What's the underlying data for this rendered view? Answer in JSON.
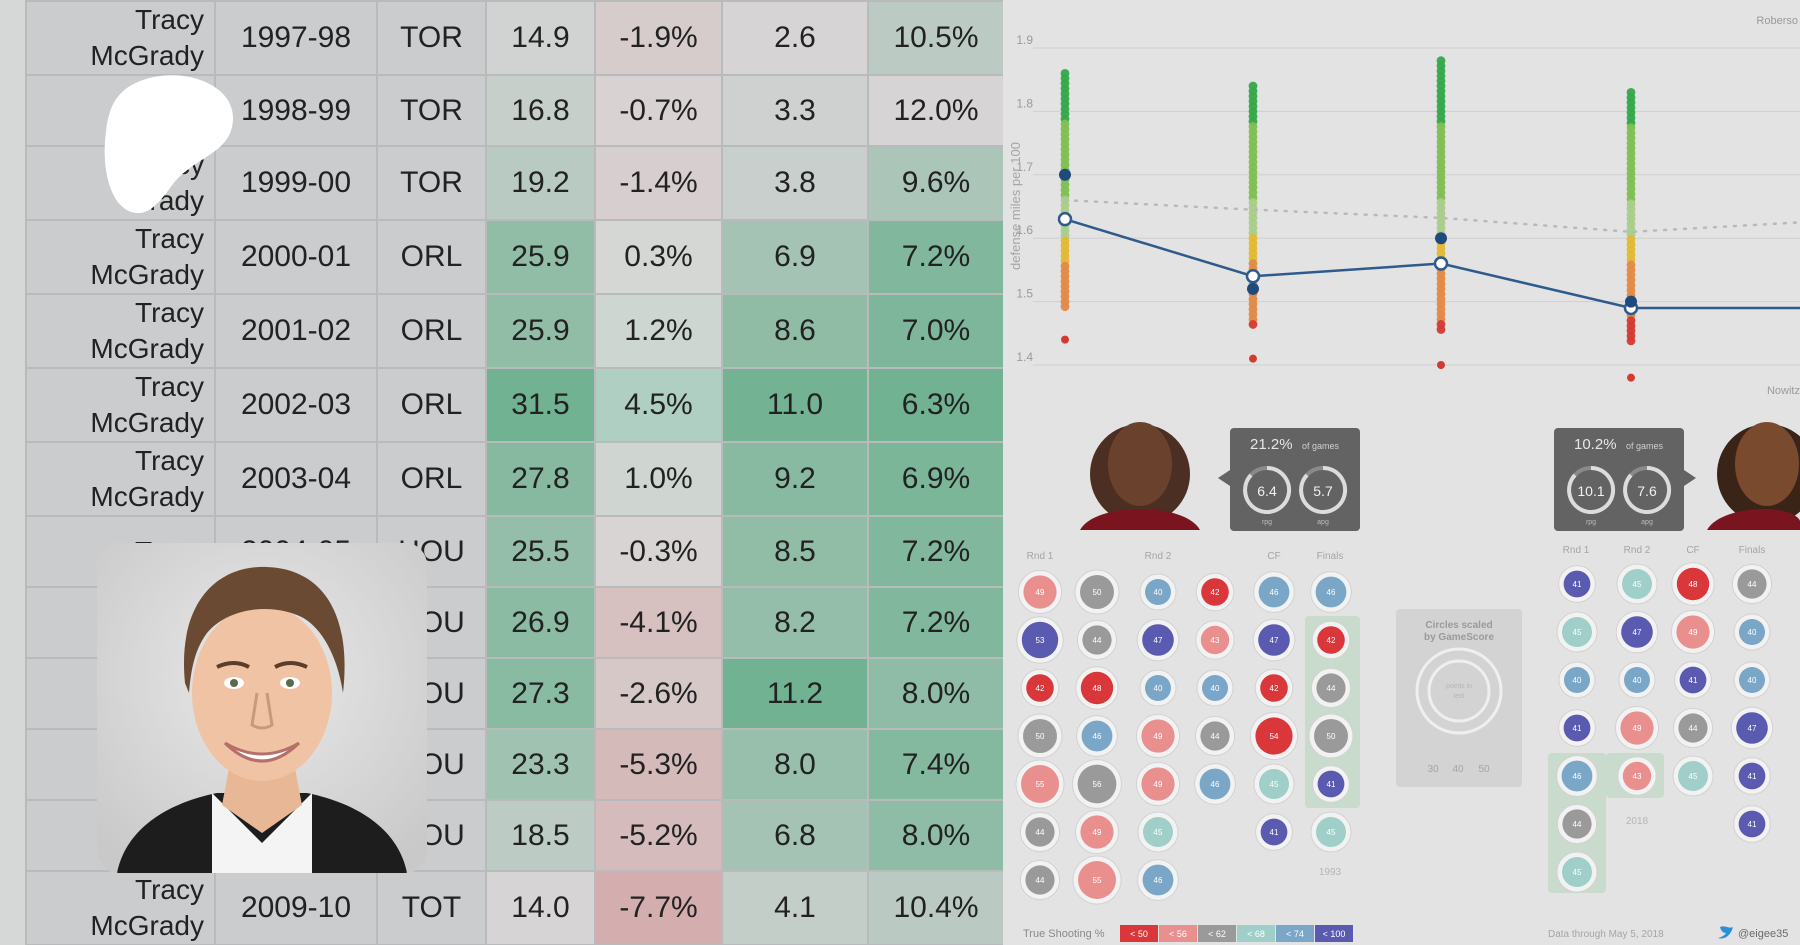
{
  "table": {
    "rows": [
      {
        "name": "Tracy\nMcGrady",
        "season": "1997-98",
        "team": "TOR",
        "c3": "14.9",
        "c4": "-1.9%",
        "c5": "2.6",
        "c6": "10.5%"
      },
      {
        "name": "",
        "season": "1998-99",
        "team": "TOR",
        "c3": "16.8",
        "c4": "-0.7%",
        "c5": "3.3",
        "c6": "12.0%"
      },
      {
        "name": "racy\nGrady",
        "season": "1999-00",
        "team": "TOR",
        "c3": "19.2",
        "c4": "-1.4%",
        "c5": "3.8",
        "c6": "9.6%"
      },
      {
        "name": "Tracy\nMcGrady",
        "season": "2000-01",
        "team": "ORL",
        "c3": "25.9",
        "c4": "0.3%",
        "c5": "6.9",
        "c6": "7.2%"
      },
      {
        "name": "Tracy\nMcGrady",
        "season": "2001-02",
        "team": "ORL",
        "c3": "25.9",
        "c4": "1.2%",
        "c5": "8.6",
        "c6": "7.0%"
      },
      {
        "name": "Tracy\nMcGrady",
        "season": "2002-03",
        "team": "ORL",
        "c3": "31.5",
        "c4": "4.5%",
        "c5": "11.0",
        "c6": "6.3%"
      },
      {
        "name": "Tracy\nMcGrady",
        "season": "2003-04",
        "team": "ORL",
        "c3": "27.8",
        "c4": "1.0%",
        "c5": "9.2",
        "c6": "6.9%"
      },
      {
        "name": "Tracy",
        "season": "2004-05",
        "team": "HOU",
        "c3": "25.5",
        "c4": "-0.3%",
        "c5": "8.5",
        "c6": "7.2%"
      },
      {
        "name": "",
        "season": "",
        "team": "HOU",
        "c3": "26.9",
        "c4": "-4.1%",
        "c5": "8.2",
        "c6": "7.2%"
      },
      {
        "name": "",
        "season": "",
        "team": "HOU",
        "c3": "27.3",
        "c4": "-2.6%",
        "c5": "11.2",
        "c6": "8.0%"
      },
      {
        "name": "",
        "season": "",
        "team": "HOU",
        "c3": "23.3",
        "c4": "-5.3%",
        "c5": "8.0",
        "c6": "7.4%"
      },
      {
        "name": "",
        "season": "",
        "team": "HOU",
        "c3": "18.5",
        "c4": "-5.2%",
        "c5": "6.8",
        "c6": "8.0%"
      },
      {
        "name": "Tracy\nMcGrady",
        "season": "2009-10",
        "team": "TOT",
        "c3": "14.0",
        "c4": "-7.7%",
        "c5": "4.1",
        "c6": "10.4%"
      }
    ]
  },
  "chart": {
    "ylabel": "defense miles per 100",
    "top_label": "Roberso",
    "yticks": [
      "1.9",
      "1.8",
      "1.7",
      "1.6",
      "1.5",
      "1.4"
    ],
    "chart_data": {
      "type": "line",
      "ylabel": "defense miles per 100",
      "ylim": [
        1.4,
        1.9
      ],
      "series": [
        {
          "values": [
            1.63,
            1.54,
            1.56,
            1.49,
            1.49
          ]
        }
      ]
    }
  },
  "bracket": {
    "right_name": "Nowitz",
    "left_stat": {
      "pct": "21.2%",
      "sub": "of games",
      "a": "6.4",
      "a_sub": "rpg",
      "b": "5.7",
      "b_sub": "apg"
    },
    "right_stat": {
      "pct": "10.2%",
      "sub": "of games",
      "a": "10.1",
      "a_sub": "rpg",
      "b": "7.6",
      "b_sub": "apg"
    },
    "left_headers": [
      "Rnd 1",
      "Rnd 2",
      "CF",
      "Finals"
    ],
    "right_headers": [
      "Rnd 1",
      "Rnd 2",
      "CF",
      "Finals"
    ],
    "legend_title": "Circles scaled\nby GameScore",
    "legend_sub": "points in\ntext",
    "legend_ticks": [
      "30",
      "40",
      "50"
    ],
    "year_left": "1993",
    "year_right": "2018",
    "ts_label": "True Shooting %",
    "ts_bins": [
      "< 50",
      "< 56",
      "< 62",
      "< 68",
      "< 74",
      "< 100"
    ],
    "ts_colors": [
      "#d9373a",
      "#e9908f",
      "#9a9a9a",
      "#9fcfc8",
      "#7aa6c8",
      "#5a5ab0"
    ],
    "footer": "Data through May 5, 2018",
    "handle": "@eigee35",
    "left_circles": [
      [
        "49",
        "53",
        "42",
        "50",
        "55",
        "44",
        "44"
      ],
      [
        "50",
        "44",
        "48",
        "46",
        "56",
        "49",
        "55"
      ],
      [
        "40",
        "47",
        "40",
        "49",
        "49",
        "45",
        "46"
      ],
      [
        "42",
        "43",
        "40",
        "44",
        "46"
      ],
      [
        "46",
        "47",
        "42",
        "54",
        "45",
        "41"
      ],
      [
        "46",
        "42",
        "44",
        "50",
        "41",
        "45"
      ]
    ],
    "right_circles": [
      [
        "41",
        "45",
        "40",
        "41",
        "46",
        "44",
        "45"
      ],
      [
        "45",
        "47",
        "40",
        "49",
        "43"
      ],
      [
        "48",
        "49",
        "41",
        "44",
        "45"
      ],
      [
        "44",
        "40",
        "40",
        "47",
        "41",
        "41"
      ]
    ]
  }
}
